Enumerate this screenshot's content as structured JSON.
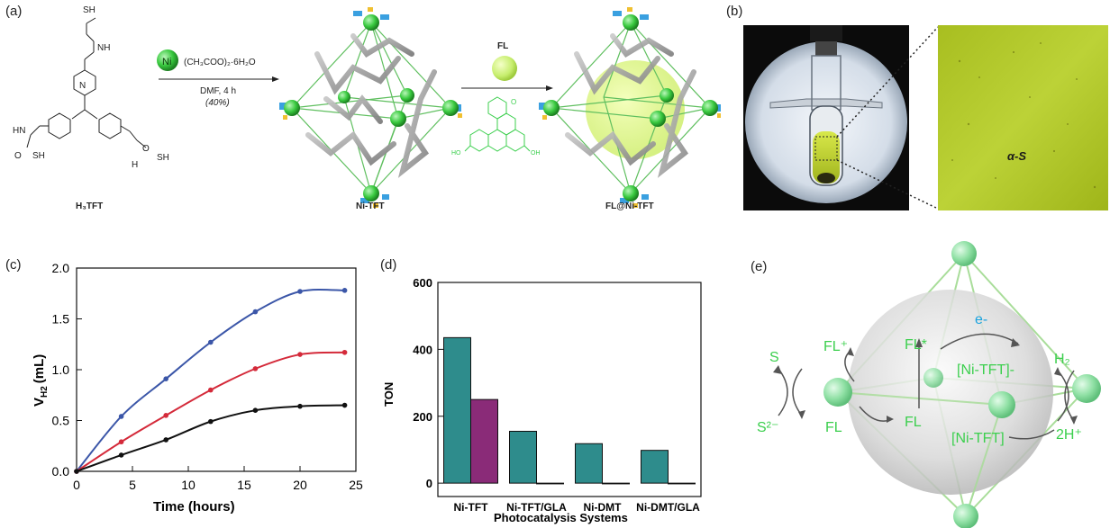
{
  "panel_labels": {
    "a": "(a)",
    "b": "(b)",
    "c": "(c)",
    "d": "(d)",
    "e": "(e)"
  },
  "panel_a": {
    "ligand_name": "H₃TFT",
    "ligand_groups": {
      "sh": "SH",
      "hn": "HN",
      "nh": "NH",
      "n": "N",
      "o": "O",
      "h": "H"
    },
    "reagent_metal": "Ni",
    "reagent_formula": "(CH₃COO)₂·6H₂O",
    "conditions": "DMF, 4 h",
    "yield": "(40%)",
    "cage_name": "Ni-TFT",
    "guest_label": "FL",
    "guest_groups": {
      "ho": "HO",
      "oh": "OH",
      "o": "O"
    },
    "host_guest_name": "FL@Ni-TFT"
  },
  "panel_b": {
    "inset_label": "α-S"
  },
  "chart_data": [
    {
      "type": "line",
      "panel": "c",
      "xlabel": "Time (hours)",
      "ylabel_main": "V",
      "ylabel_sub": "H2",
      "ylabel_unit": "(mL)",
      "xlim": [
        0,
        25
      ],
      "ylim": [
        0,
        2.0
      ],
      "xticks": [
        "0",
        "5",
        "10",
        "15",
        "20",
        "25"
      ],
      "yticks": [
        "0.0",
        "0.5",
        "1.0",
        "1.5",
        "2.0"
      ],
      "x": [
        0,
        4,
        8,
        12,
        16,
        20,
        24
      ],
      "series": [
        {
          "color": "#3b56a8",
          "values": [
            0.0,
            0.54,
            0.91,
            1.27,
            1.57,
            1.77,
            1.78
          ]
        },
        {
          "color": "#d42a3a",
          "values": [
            0.0,
            0.29,
            0.55,
            0.8,
            1.01,
            1.15,
            1.17
          ]
        },
        {
          "color": "#111111",
          "values": [
            0.0,
            0.16,
            0.31,
            0.49,
            0.6,
            0.64,
            0.65
          ]
        }
      ]
    },
    {
      "type": "bar",
      "panel": "d",
      "xlabel": "Photocatalysis Systems",
      "ylabel": "TON",
      "ylim": [
        -40,
        600
      ],
      "yticks": [
        "0",
        "200",
        "400",
        "600"
      ],
      "categories": [
        "Ni-TFT",
        "Ni-TFT/GLA",
        "Ni-DMT",
        "Ni-DMT/GLA"
      ],
      "series": [
        {
          "color": "#2e8c8c",
          "values": [
            435,
            155,
            118,
            98
          ]
        },
        {
          "color": "#8a2b78",
          "values": [
            250,
            0,
            0,
            0
          ]
        }
      ]
    }
  ],
  "panel_e": {
    "s": "S",
    "s2": "S²⁻",
    "fl_plus": "FL⁺",
    "fl_left": "FL",
    "fl_star": "FL*",
    "fl_center": "FL",
    "electron": "e-",
    "ni_tft_minus": "[Ni-TFT]-",
    "ni_tft": "[Ni-TFT]",
    "h2": "H₂",
    "h_plus": "2H⁺"
  },
  "colors": {
    "scheme_green": "#3ccf4e",
    "electron_blue": "#1aa3e0",
    "cage_line": "#8fd19e"
  }
}
